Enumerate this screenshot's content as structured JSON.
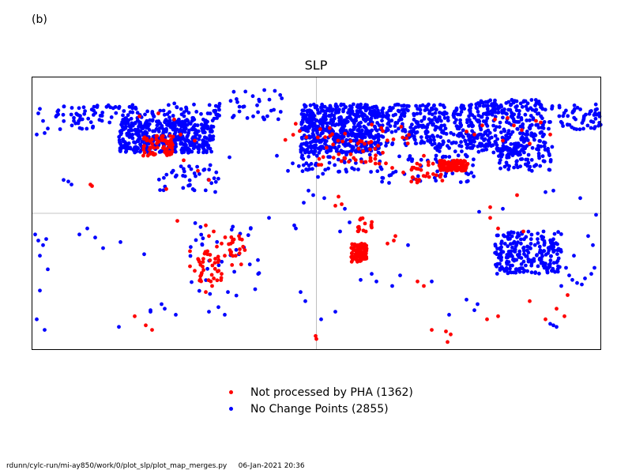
{
  "panel_label": "(b)",
  "footer": {
    "path": "rdunn/cylc-run/mi-ay850/work/0/plot_slp/plot_map_merges.py",
    "timestamp": "06-Jan-2021 20:36"
  },
  "chart_data": {
    "type": "scatter",
    "title": "SLP",
    "xlabel": "",
    "ylabel": "",
    "xlim": [
      -180,
      180
    ],
    "ylim": [
      -90,
      90
    ],
    "reference_lines": {
      "longitude": 0,
      "latitude": 0
    },
    "legend": {
      "placement": "bottom-center"
    },
    "series": [
      {
        "name": "Not processed by PHA (1362)",
        "color": "#ff0000",
        "clusters": [
          {
            "lon": [
              -110,
              -90
            ],
            "lat": [
              38,
              52
            ],
            "n": 70
          },
          {
            "lon": [
              -75,
              -60
            ],
            "lat": [
              -25,
              -45
            ],
            "n": 35
          },
          {
            "lon": [
              -58,
              -45
            ],
            "lat": [
              -15,
              -35
            ],
            "n": 20
          },
          {
            "lon": [
              22,
              32
            ],
            "lat": [
              -20,
              -32
            ],
            "n": 90
          },
          {
            "lon": [
              26,
              36
            ],
            "lat": [
              -3,
              -12
            ],
            "n": 15
          },
          {
            "lon": [
              78,
              96
            ],
            "lat": [
              28,
              35
            ],
            "n": 110
          },
          {
            "lon": [
              60,
              80
            ],
            "lat": [
              20,
              34
            ],
            "n": 30
          },
          {
            "lon": [
              0,
              40
            ],
            "lat": [
              32,
              48
            ],
            "n": 35
          },
          {
            "lon": [
              -20,
              60
            ],
            "lat": [
              45,
              60
            ],
            "n": 25
          }
        ],
        "points": [
          [
            -143,
            19
          ],
          [
            -142,
            18
          ],
          [
            -112,
            64
          ],
          [
            -100,
            66
          ],
          [
            -90,
            62
          ],
          [
            -86,
            52
          ],
          [
            -77,
            48
          ],
          [
            -84,
            35
          ],
          [
            -75,
            28
          ],
          [
            -68,
            22
          ],
          [
            -95,
            16
          ],
          [
            -88,
            -5
          ],
          [
            -70,
            -8
          ],
          [
            -65,
            -12
          ],
          [
            -60,
            -20
          ],
          [
            -58,
            -28
          ],
          [
            -60,
            -40
          ],
          [
            -66,
            -48
          ],
          [
            -70,
            -52
          ],
          [
            -80,
            -35
          ],
          [
            -80,
            -25
          ],
          [
            -77,
            -38
          ],
          [
            -68,
            -15
          ],
          [
            -63,
            -22
          ],
          [
            -64,
            -30
          ],
          [
            -49,
            -15
          ],
          [
            -53,
            -18
          ],
          [
            -115,
            -68
          ],
          [
            -108,
            -74
          ],
          [
            -104,
            -77
          ],
          [
            -0.5,
            -81
          ],
          [
            0,
            -83
          ],
          [
            14,
            11
          ],
          [
            12,
            5
          ],
          [
            16,
            6
          ],
          [
            45,
            -20
          ],
          [
            49,
            -18
          ],
          [
            50,
            -15
          ],
          [
            64,
            -45
          ],
          [
            68,
            -48
          ],
          [
            73,
            -77
          ],
          [
            82,
            -78
          ],
          [
            83,
            -85
          ],
          [
            85,
            -80
          ],
          [
            110,
            -3
          ],
          [
            110,
            4
          ],
          [
            115,
            -10
          ],
          [
            127,
            12
          ],
          [
            131,
            -12
          ],
          [
            135,
            -58
          ],
          [
            145,
            -70
          ],
          [
            157,
            -68
          ],
          [
            159,
            -54
          ],
          [
            152,
            -63
          ],
          [
            108,
            -70
          ],
          [
            115,
            -68
          ],
          [
            44,
            33
          ],
          [
            48,
            30
          ],
          [
            55,
            27
          ],
          [
            68,
            38
          ],
          [
            42,
            40
          ],
          [
            105,
            58
          ],
          [
            113,
            62
          ],
          [
            121,
            63
          ],
          [
            125,
            58
          ],
          [
            130,
            55
          ],
          [
            139,
            61
          ],
          [
            95,
            54
          ],
          [
            100,
            52
          ],
          [
            118,
            48
          ],
          [
            135,
            46
          ],
          [
            142,
            60
          ],
          [
            148,
            52
          ]
        ]
      },
      {
        "name": "No Change Points (2855)",
        "color": "#0000ff",
        "clusters": [
          {
            "lon": [
              -125,
              -65
            ],
            "lat": [
              40,
              62
            ],
            "n": 450
          },
          {
            "lon": [
              -165,
              -140
            ],
            "lat": [
              55,
              71
            ],
            "n": 40
          },
          {
            "lon": [
              -140,
              -100
            ],
            "lat": [
              60,
              72
            ],
            "n": 45
          },
          {
            "lon": [
              -100,
              -60
            ],
            "lat": [
              62,
              73
            ],
            "n": 40
          },
          {
            "lon": [
              -55,
              -20
            ],
            "lat": [
              62,
              82
            ],
            "n": 30
          },
          {
            "lon": [
              -10,
              40
            ],
            "lat": [
              40,
              72
            ],
            "n": 550
          },
          {
            "lon": [
              40,
              100
            ],
            "lat": [
              43,
              72
            ],
            "n": 300
          },
          {
            "lon": [
              100,
              145
            ],
            "lat": [
              40,
              75
            ],
            "n": 300
          },
          {
            "lon": [
              145,
              180
            ],
            "lat": [
              55,
              72
            ],
            "n": 60
          },
          {
            "lon": [
              115,
              150
            ],
            "lat": [
              28,
              45
            ],
            "n": 80
          },
          {
            "lon": [
              -12,
              40
            ],
            "lat": [
              26,
              40
            ],
            "n": 45
          },
          {
            "lon": [
              40,
              100
            ],
            "lat": [
              20,
              42
            ],
            "n": 60
          },
          {
            "lon": [
              -80,
              -35
            ],
            "lat": [
              -55,
              -5
            ],
            "n": 35
          },
          {
            "lon": [
              113,
              155
            ],
            "lat": [
              -40,
              -12
            ],
            "n": 220
          },
          {
            "lon": [
              -100,
              -62
            ],
            "lat": [
              14,
              32
            ],
            "n": 40
          }
        ],
        "points": [
          [
            -175,
            69
          ],
          [
            -176,
            66
          ],
          [
            -173,
            61
          ],
          [
            -170,
            56
          ],
          [
            -172,
            53
          ],
          [
            -177,
            52
          ],
          [
            -160,
            22
          ],
          [
            -157,
            21
          ],
          [
            -155,
            19
          ],
          [
            -178,
            -14
          ],
          [
            -176,
            -18
          ],
          [
            -171,
            -17
          ],
          [
            -173,
            -21
          ],
          [
            -175,
            -28
          ],
          [
            -170,
            -37
          ],
          [
            -175,
            -51
          ],
          [
            -177,
            -70
          ],
          [
            -172,
            -77
          ],
          [
            -150,
            -14
          ],
          [
            -140,
            -16
          ],
          [
            -135,
            -23
          ],
          [
            -145,
            -10
          ],
          [
            -25,
            38
          ],
          [
            -18,
            28
          ],
          [
            -15,
            33
          ],
          [
            -5,
            15
          ],
          [
            -13,
            -10
          ],
          [
            -14,
            -8
          ],
          [
            -10,
            -52
          ],
          [
            -7,
            -58
          ],
          [
            3,
            -70
          ],
          [
            12,
            -65
          ],
          [
            35,
            -40
          ],
          [
            38,
            -45
          ],
          [
            48,
            -48
          ],
          [
            73,
            -45
          ],
          [
            58,
            -21
          ],
          [
            53,
            -41
          ],
          [
            84,
            -67
          ],
          [
            95,
            -57
          ],
          [
            100,
            -64
          ],
          [
            102,
            -60
          ],
          [
            117,
            -20
          ],
          [
            131,
            -23
          ],
          [
            140,
            -17
          ],
          [
            158,
            -36
          ],
          [
            160,
            -41
          ],
          [
            162,
            -44
          ],
          [
            165,
            -46
          ],
          [
            168,
            -47
          ],
          [
            170,
            -43
          ],
          [
            174,
            -40
          ],
          [
            176,
            -36
          ],
          [
            155,
            -48
          ],
          [
            148,
            -73
          ],
          [
            150,
            -74
          ],
          [
            152,
            -75
          ],
          [
            175,
            -21
          ],
          [
            172,
            -15
          ],
          [
            163,
            -28
          ],
          [
            177,
            -1
          ],
          [
            167,
            10
          ],
          [
            150,
            15
          ],
          [
            145,
            14
          ],
          [
            118,
            3
          ],
          [
            103,
            1
          ],
          [
            -96,
            -63
          ],
          [
            -105,
            -64
          ],
          [
            -125,
            -75
          ],
          [
            -105,
            -65
          ],
          [
            -62,
            -62
          ],
          [
            -58,
            -67
          ],
          [
            -68,
            -65
          ],
          [
            -56,
            -52
          ],
          [
            -98,
            -60
          ],
          [
            -89,
            -67
          ],
          [
            -124,
            -19
          ],
          [
            -109,
            -27
          ],
          [
            15,
            -12
          ],
          [
            28,
            -44
          ],
          [
            21,
            -6
          ],
          [
            18,
            3
          ],
          [
            1,
            24
          ],
          [
            -2,
            12
          ],
          [
            -8,
            7
          ],
          [
            5,
            10
          ],
          [
            -30,
            -3
          ],
          [
            -55,
            37
          ],
          [
            -40,
            64
          ]
        ]
      }
    ]
  }
}
